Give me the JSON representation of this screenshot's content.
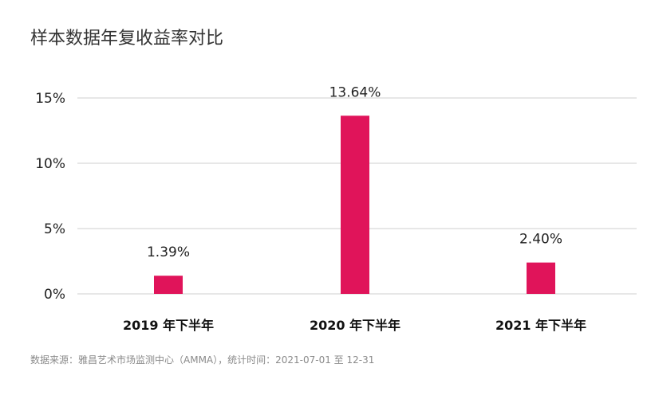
{
  "chart_data": {
    "type": "bar",
    "title": "样本数据年复收益率对比",
    "categories": [
      "2019 年下半年",
      "2020 年下半年",
      "2021 年下半年"
    ],
    "values": [
      1.39,
      13.64,
      2.4
    ],
    "data_labels": [
      "1.39%",
      "13.64%",
      "2.40%"
    ],
    "yticks": [
      0,
      5,
      10,
      15
    ],
    "ytick_labels": [
      "0%",
      "5%",
      "10%",
      "15%"
    ],
    "ylim": [
      0,
      15
    ],
    "xlabel": "",
    "ylabel": "",
    "grid": true,
    "bar_color": "#e0145a",
    "grid_color": "#cfcfcf"
  },
  "source": "数据来源：雅昌艺术市场监测中心（AMMA），统计时间：2021-07-01 至 12-31"
}
